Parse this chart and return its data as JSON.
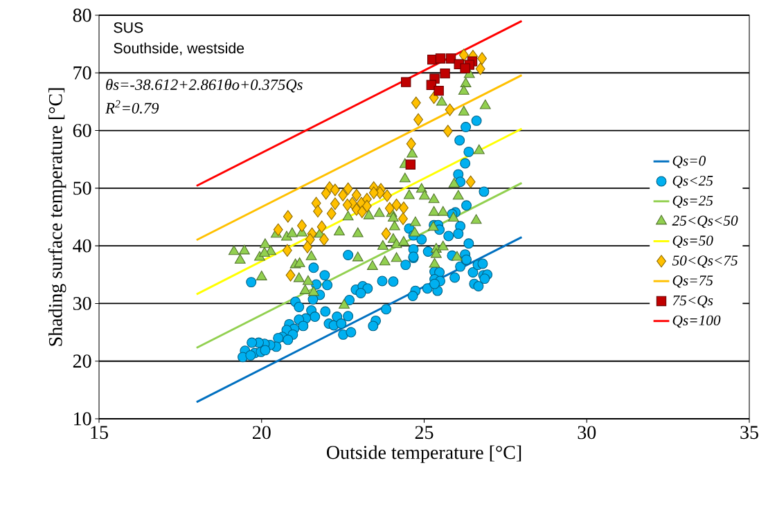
{
  "chart_data": {
    "type": "scatter",
    "xlabel": "Outside temperature [°C]",
    "ylabel": "Shading surface temperature [°C]",
    "annotations": [
      "SUS",
      "Southside, westside",
      "θs=-38.612+2.861θo+0.375Qs",
      "R$^{2}$=0.79"
    ],
    "xlim": [
      15,
      35
    ],
    "ylim": [
      10,
      80
    ],
    "xticks": [
      15,
      20,
      25,
      30,
      35
    ],
    "yticks": [
      10,
      20,
      30,
      40,
      50,
      60,
      70,
      80
    ],
    "grid": "y",
    "legend": "right",
    "series": [
      {
        "name": "Qs=0",
        "type": "line",
        "color": "#0070c0",
        "x": [
          18,
          28
        ],
        "values": [
          12.9,
          41.5
        ]
      },
      {
        "name": "Qs<25",
        "type": "scatter",
        "marker": "circle",
        "color": "#00b0f0",
        "x": [
          19.68,
          21.6,
          21.94,
          22.02,
          21.68,
          21.79,
          21.58,
          21.04,
          21.15,
          21.53,
          21.96,
          21.64,
          21.36,
          21.15,
          20.85,
          21.28,
          21.0,
          20.77,
          20.96,
          20.64,
          20.51,
          20.81,
          20.45,
          20.26,
          20.09,
          19.91,
          19.7,
          19.49,
          19.79,
          19.98,
          20.11,
          19.42,
          19.66,
          22.07,
          22.22,
          22.32,
          22.45,
          22.51,
          22.75,
          22.66,
          22.7,
          22.9,
          24.43,
          24.67,
          23.71,
          24.05,
          23.11,
          23.26,
          23.05,
          23.83,
          23.51,
          23.43,
          24.73,
          24.65,
          25.1,
          25.41,
          25.32,
          25.47,
          25.32,
          25.49,
          25.32,
          25.94,
          26.11,
          26.28,
          26.5,
          26.65,
          26.8,
          26.82,
          26.94,
          26.54,
          26.67,
          26.86,
          26.26,
          26.05,
          26.11,
          26.84,
          26.3,
          25.96,
          25.86,
          26.11,
          25.3,
          25.43,
          25.47,
          24.54,
          24.67,
          25.75,
          26.05,
          24.92,
          26.37,
          24.67,
          24.67,
          25.12,
          25.86,
          26.26,
          26.3,
          22.66,
          26.61,
          26.28,
          26.09,
          26.37
        ],
        "values": [
          33.7,
          36.2,
          34.9,
          33.2,
          33.3,
          31.5,
          30.7,
          30.3,
          29.4,
          28.8,
          28.6,
          27.7,
          27.4,
          27.2,
          26.4,
          26.1,
          25.6,
          25.4,
          24.6,
          24.2,
          24.0,
          23.7,
          22.5,
          22.8,
          23.0,
          23.2,
          23.2,
          21.8,
          21.4,
          21.6,
          21.9,
          20.7,
          21.0,
          26.5,
          26.2,
          27.7,
          26.5,
          24.6,
          25.0,
          27.8,
          30.6,
          32.4,
          36.7,
          37.9,
          33.9,
          33.8,
          33.0,
          32.6,
          31.8,
          29.0,
          27.0,
          26.1,
          32.2,
          31.3,
          32.6,
          32.2,
          35.5,
          35.4,
          34.2,
          33.9,
          33.4,
          34.5,
          36.4,
          37.6,
          35.4,
          36.7,
          36.9,
          34.9,
          35.0,
          33.4,
          33.0,
          34.3,
          54.3,
          52.4,
          51.1,
          49.4,
          47.0,
          45.8,
          45.5,
          43.4,
          43.6,
          43.6,
          42.8,
          43.0,
          41.8,
          41.7,
          42.1,
          41.1,
          40.4,
          39.4,
          38.1,
          39.0,
          38.3,
          38.5,
          37.6,
          38.4,
          61.7,
          60.6,
          58.3,
          56.3
        ]
      },
      {
        "name": "Qs=25",
        "type": "line",
        "color": "#92d050",
        "x": [
          18,
          28
        ],
        "values": [
          22.3,
          50.9
        ]
      },
      {
        "name": "25<Qs<50",
        "type": "scatter",
        "marker": "triangle",
        "color": "#92d050",
        "x": [
          19.34,
          19.94,
          21.53,
          20.0,
          21.04,
          21.17,
          21.15,
          21.43,
          21.34,
          21.6,
          22.54,
          22.96,
          19.15,
          19.47,
          20.11,
          20.28,
          20.09,
          20.45,
          20.77,
          20.94,
          21.24,
          21.79,
          22.39,
          22.66,
          22.96,
          24.41,
          24.41,
          24.54,
          24.92,
          25.01,
          25.3,
          25.92,
          26.05,
          25.3,
          25.58,
          25.9,
          26.6,
          23.3,
          23.62,
          24.0,
          24.05,
          24.73,
          24.09,
          24.71,
          25.28,
          23.73,
          24.05,
          24.15,
          24.37,
          25.37,
          25.58,
          25.37,
          26.01,
          24.15,
          23.79,
          23.41,
          25.32,
          26.39,
          26.28,
          26.22,
          25.54,
          26.22,
          26.88,
          26.69,
          24.63
        ],
        "values": [
          37.5,
          38.0,
          38.1,
          34.6,
          36.7,
          36.9,
          34.3,
          33.8,
          32.2,
          31.9,
          29.7,
          37.9,
          39.0,
          39.1,
          40.2,
          39.0,
          38.7,
          42.0,
          41.5,
          42.1,
          42.2,
          42.0,
          42.4,
          45.0,
          42.1,
          54.1,
          51.6,
          48.7,
          49.8,
          48.6,
          48.0,
          50.7,
          48.6,
          45.8,
          45.8,
          44.8,
          44.4,
          45.2,
          45.6,
          45.6,
          44.8,
          44.0,
          43.3,
          42.2,
          43.2,
          39.9,
          41.1,
          40.2,
          40.6,
          39.4,
          39.8,
          38.5,
          38.0,
          37.8,
          37.2,
          36.4,
          36.8,
          69.7,
          68.1,
          66.8,
          64.9,
          63.2,
          64.3,
          56.5,
          55.9
        ]
      },
      {
        "name": "Qs=50",
        "type": "line",
        "color": "#ffff00",
        "x": [
          18,
          28
        ],
        "values": [
          31.6,
          60.3
        ]
      },
      {
        "name": "50<Qs<75",
        "type": "scatter",
        "marker": "diamond",
        "color": "#ffc000",
        "x": [
          22.09,
          21.98,
          22.26,
          22.5,
          22.66,
          22.92,
          22.79,
          22.64,
          22.92,
          21.68,
          21.73,
          22.26,
          22.15,
          20.81,
          21.24,
          21.85,
          20.51,
          21.55,
          21.49,
          21.92,
          21.41,
          20.79,
          23.07,
          23.24,
          23.24,
          23.09,
          23.45,
          23.67,
          23.86,
          23.64,
          23.45,
          24.15,
          24.37,
          23.94,
          24.35,
          23.83,
          26.43,
          26.22,
          26.5,
          26.78,
          26.73,
          25.3,
          24.75,
          25.79,
          24.82,
          25.73,
          24.6,
          20.89
        ],
        "values": [
          50.1,
          49.1,
          49.7,
          48.8,
          49.9,
          48.8,
          47.4,
          47.1,
          46.3,
          47.4,
          46.0,
          47.3,
          45.6,
          45.1,
          43.5,
          43.3,
          42.8,
          42.1,
          41.1,
          41.1,
          39.8,
          39.2,
          47.4,
          48.1,
          46.9,
          45.9,
          50.1,
          49.8,
          48.7,
          49.2,
          49.2,
          47.1,
          46.6,
          46.5,
          44.7,
          42.1,
          51.1,
          73.1,
          72.9,
          72.5,
          70.7,
          65.7,
          64.8,
          63.6,
          61.9,
          59.9,
          57.7,
          34.9
        ]
      },
      {
        "name": "Qs=75",
        "type": "line",
        "color": "#ffc000",
        "x": [
          18,
          28
        ],
        "values": [
          41.0,
          69.6
        ]
      },
      {
        "name": "75<Qs",
        "type": "scatter",
        "marker": "square",
        "color": "#c00000",
        "x": [
          25.25,
          25.5,
          25.82,
          26.07,
          26.48,
          26.39,
          26.26,
          25.64,
          25.32,
          25.22,
          25.45,
          24.44,
          24.58
        ],
        "values": [
          72.3,
          72.5,
          72.5,
          71.5,
          72.0,
          71.4,
          70.8,
          69.9,
          69.0,
          67.9,
          66.9,
          68.4,
          54.1
        ]
      },
      {
        "name": "Qs=100",
        "type": "line",
        "color": "#ff0000",
        "x": [
          18,
          28
        ],
        "values": [
          50.4,
          79.0
        ]
      }
    ]
  }
}
